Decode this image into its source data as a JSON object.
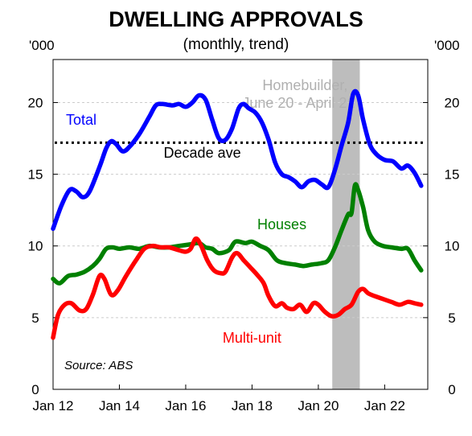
{
  "chart_data": {
    "type": "line",
    "title": "DWELLING APPROVALS",
    "subtitle": "(monthly, trend)",
    "unit_left": "'000",
    "unit_right": "'000",
    "ylim": [
      0,
      23
    ],
    "yticks": [
      0,
      5,
      10,
      15,
      20
    ],
    "xlim": [
      2012.0,
      2023.3
    ],
    "xticks": [
      {
        "x": 2012.0,
        "label": "Jan 12"
      },
      {
        "x": 2014.0,
        "label": "Jan 14"
      },
      {
        "x": 2016.0,
        "label": "Jan 16"
      },
      {
        "x": 2018.0,
        "label": "Jan 18"
      },
      {
        "x": 2020.0,
        "label": "Jan 20"
      },
      {
        "x": 2022.0,
        "label": "Jan 22"
      }
    ],
    "grid": true,
    "shaded_period": {
      "label_line1": "Homebuilder,",
      "label_line2": "June 20 - April 21",
      "from": 2020.42,
      "to": 2021.25,
      "color": "#bdbdbd"
    },
    "reference_line": {
      "label": "Decade ave",
      "value": 17.2
    },
    "source": "Source: ABS",
    "series": [
      {
        "name": "Total",
        "color": "#0000ff",
        "points": [
          [
            2012.0,
            11.2
          ],
          [
            2012.25,
            12.8
          ],
          [
            2012.5,
            13.9
          ],
          [
            2012.7,
            13.8
          ],
          [
            2012.9,
            13.4
          ],
          [
            2013.1,
            13.8
          ],
          [
            2013.4,
            15.5
          ],
          [
            2013.6,
            16.8
          ],
          [
            2013.75,
            17.3
          ],
          [
            2013.9,
            17.1
          ],
          [
            2014.1,
            16.6
          ],
          [
            2014.3,
            16.9
          ],
          [
            2014.6,
            17.8
          ],
          [
            2014.9,
            19.0
          ],
          [
            2015.1,
            19.8
          ],
          [
            2015.3,
            19.9
          ],
          [
            2015.6,
            19.8
          ],
          [
            2015.8,
            19.9
          ],
          [
            2016.0,
            19.7
          ],
          [
            2016.2,
            20.0
          ],
          [
            2016.4,
            20.5
          ],
          [
            2016.6,
            20.2
          ],
          [
            2016.8,
            18.8
          ],
          [
            2017.0,
            17.5
          ],
          [
            2017.2,
            17.4
          ],
          [
            2017.4,
            18.2
          ],
          [
            2017.6,
            19.6
          ],
          [
            2017.75,
            19.9
          ],
          [
            2017.9,
            19.6
          ],
          [
            2018.1,
            19.3
          ],
          [
            2018.3,
            18.6
          ],
          [
            2018.5,
            17.4
          ],
          [
            2018.7,
            15.8
          ],
          [
            2018.9,
            15.0
          ],
          [
            2019.1,
            14.8
          ],
          [
            2019.3,
            14.5
          ],
          [
            2019.5,
            14.1
          ],
          [
            2019.7,
            14.5
          ],
          [
            2019.9,
            14.6
          ],
          [
            2020.1,
            14.3
          ],
          [
            2020.3,
            14.1
          ],
          [
            2020.5,
            15.3
          ],
          [
            2020.7,
            17.0
          ],
          [
            2020.9,
            18.6
          ],
          [
            2021.05,
            20.6
          ],
          [
            2021.2,
            20.5
          ],
          [
            2021.35,
            18.8
          ],
          [
            2021.55,
            17.1
          ],
          [
            2021.75,
            16.4
          ],
          [
            2022.0,
            16.0
          ],
          [
            2022.25,
            15.9
          ],
          [
            2022.5,
            15.4
          ],
          [
            2022.7,
            15.6
          ],
          [
            2022.9,
            15.1
          ],
          [
            2023.1,
            14.2
          ]
        ]
      },
      {
        "name": "Houses",
        "color": "#008000",
        "points": [
          [
            2012.0,
            7.7
          ],
          [
            2012.2,
            7.4
          ],
          [
            2012.45,
            7.9
          ],
          [
            2012.7,
            8.0
          ],
          [
            2012.95,
            8.2
          ],
          [
            2013.2,
            8.6
          ],
          [
            2013.4,
            9.1
          ],
          [
            2013.6,
            9.8
          ],
          [
            2013.8,
            9.9
          ],
          [
            2014.0,
            9.8
          ],
          [
            2014.3,
            9.9
          ],
          [
            2014.6,
            9.8
          ],
          [
            2014.9,
            10.0
          ],
          [
            2015.2,
            9.9
          ],
          [
            2015.5,
            9.9
          ],
          [
            2015.8,
            10.0
          ],
          [
            2016.1,
            10.1
          ],
          [
            2016.4,
            10.2
          ],
          [
            2016.6,
            9.9
          ],
          [
            2016.8,
            9.8
          ],
          [
            2017.0,
            9.5
          ],
          [
            2017.3,
            9.7
          ],
          [
            2017.5,
            10.3
          ],
          [
            2017.8,
            10.2
          ],
          [
            2018.0,
            10.3
          ],
          [
            2018.25,
            10.0
          ],
          [
            2018.5,
            9.7
          ],
          [
            2018.75,
            9.0
          ],
          [
            2019.0,
            8.8
          ],
          [
            2019.3,
            8.7
          ],
          [
            2019.55,
            8.6
          ],
          [
            2019.8,
            8.7
          ],
          [
            2020.1,
            8.8
          ],
          [
            2020.3,
            9.0
          ],
          [
            2020.5,
            9.9
          ],
          [
            2020.7,
            11.1
          ],
          [
            2020.9,
            12.2
          ],
          [
            2021.0,
            12.3
          ],
          [
            2021.1,
            14.2
          ],
          [
            2021.2,
            13.9
          ],
          [
            2021.35,
            12.7
          ],
          [
            2021.5,
            11.1
          ],
          [
            2021.7,
            10.3
          ],
          [
            2021.95,
            10.0
          ],
          [
            2022.2,
            9.9
          ],
          [
            2022.5,
            9.8
          ],
          [
            2022.7,
            9.8
          ],
          [
            2022.9,
            9.0
          ],
          [
            2023.1,
            8.3
          ]
        ]
      },
      {
        "name": "Multi-unit",
        "color": "#ff0000",
        "points": [
          [
            2012.0,
            3.6
          ],
          [
            2012.15,
            5.2
          ],
          [
            2012.35,
            5.9
          ],
          [
            2012.55,
            6.0
          ],
          [
            2012.8,
            5.5
          ],
          [
            2013.0,
            5.6
          ],
          [
            2013.2,
            6.6
          ],
          [
            2013.4,
            7.9
          ],
          [
            2013.55,
            7.7
          ],
          [
            2013.75,
            6.6
          ],
          [
            2013.95,
            6.9
          ],
          [
            2014.2,
            7.9
          ],
          [
            2014.5,
            9.0
          ],
          [
            2014.75,
            9.8
          ],
          [
            2015.0,
            10.0
          ],
          [
            2015.25,
            9.9
          ],
          [
            2015.5,
            9.9
          ],
          [
            2015.8,
            9.7
          ],
          [
            2016.0,
            9.6
          ],
          [
            2016.15,
            9.8
          ],
          [
            2016.3,
            10.5
          ],
          [
            2016.45,
            10.1
          ],
          [
            2016.65,
            9.0
          ],
          [
            2016.85,
            8.3
          ],
          [
            2017.05,
            8.1
          ],
          [
            2017.2,
            8.2
          ],
          [
            2017.4,
            9.2
          ],
          [
            2017.55,
            9.5
          ],
          [
            2017.75,
            9.0
          ],
          [
            2017.95,
            8.5
          ],
          [
            2018.15,
            8.0
          ],
          [
            2018.35,
            7.4
          ],
          [
            2018.5,
            6.5
          ],
          [
            2018.7,
            5.8
          ],
          [
            2018.9,
            6.0
          ],
          [
            2019.05,
            5.7
          ],
          [
            2019.25,
            5.6
          ],
          [
            2019.45,
            5.9
          ],
          [
            2019.65,
            5.4
          ],
          [
            2019.85,
            6.0
          ],
          [
            2020.0,
            5.9
          ],
          [
            2020.2,
            5.4
          ],
          [
            2020.4,
            5.1
          ],
          [
            2020.6,
            5.2
          ],
          [
            2020.8,
            5.6
          ],
          [
            2021.0,
            5.9
          ],
          [
            2021.2,
            6.8
          ],
          [
            2021.35,
            7.0
          ],
          [
            2021.5,
            6.7
          ],
          [
            2021.7,
            6.5
          ],
          [
            2021.95,
            6.3
          ],
          [
            2022.2,
            6.1
          ],
          [
            2022.45,
            5.9
          ],
          [
            2022.7,
            6.1
          ],
          [
            2022.9,
            6.0
          ],
          [
            2023.1,
            5.9
          ]
        ]
      }
    ],
    "labels": [
      {
        "series": "Total",
        "x": 2012.85,
        "y": 18.8
      },
      {
        "series": "Houses",
        "x": 2018.9,
        "y": 11.5
      },
      {
        "series": "Multi-unit",
        "x": 2018.0,
        "y": 3.6
      }
    ],
    "reference_label_pos": {
      "x": 2016.5,
      "y": 16.5
    },
    "shade_label_pos": {
      "x": 2019.6,
      "y": 21.2
    }
  }
}
